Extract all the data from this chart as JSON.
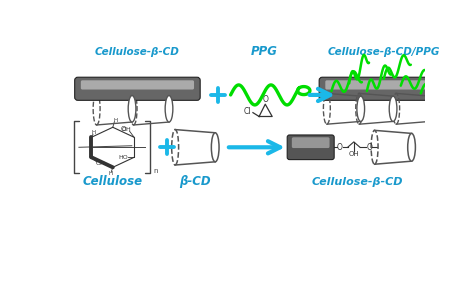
{
  "bg_color": "#ffffff",
  "cyan": "#1BB8E8",
  "green": "#00DD00",
  "label_color": "#1999CC",
  "dark": "#333333",
  "labels": {
    "cellulose": "Cellulose",
    "bcd": "β-CD",
    "cellulose_bcd": "Cellulose-β-CD",
    "ppg": "PPG",
    "cellulose_bcd_ppg": "Cellulose-β-CD/PPG"
  },
  "r1y": 0.7,
  "r2y": 0.28,
  "lab1y": 0.5,
  "lab2y": 0.06
}
